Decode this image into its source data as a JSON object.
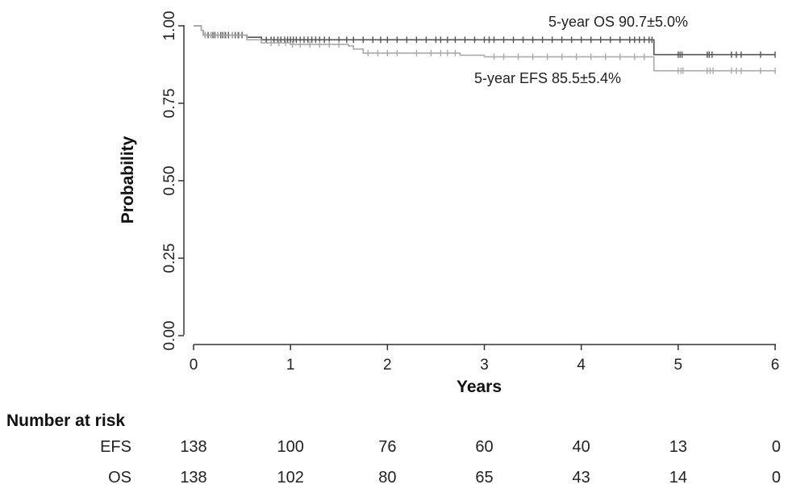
{
  "chart_data": {
    "type": "line",
    "xlabel": "Years",
    "ylabel": "Probability",
    "xlim": [
      0,
      6
    ],
    "ylim": [
      0,
      1
    ],
    "x_ticks": [
      "0",
      "1",
      "2",
      "3",
      "4",
      "5",
      "6"
    ],
    "y_ticks": [
      "0.00",
      "0.25",
      "0.50",
      "0.75",
      "1.00"
    ],
    "grid": false,
    "series": [
      {
        "name": "OS",
        "color": "#555555",
        "points": [
          [
            0,
            1.0
          ],
          [
            0.08,
            0.985
          ],
          [
            0.1,
            0.97
          ],
          [
            0.55,
            0.963
          ],
          [
            0.7,
            0.955
          ],
          [
            4.75,
            0.955
          ],
          [
            4.75,
            0.907
          ],
          [
            6.0,
            0.907
          ]
        ],
        "censor_x": [
          0.12,
          0.15,
          0.18,
          0.2,
          0.22,
          0.25,
          0.28,
          0.3,
          0.33,
          0.36,
          0.4,
          0.43,
          0.46,
          0.5,
          0.7,
          0.75,
          0.8,
          0.83,
          0.87,
          0.9,
          0.94,
          0.97,
          1.0,
          1.03,
          1.06,
          1.1,
          1.14,
          1.18,
          1.22,
          1.26,
          1.3,
          1.35,
          1.4,
          1.5,
          1.58,
          1.65,
          1.75,
          1.85,
          1.93,
          2.0,
          2.1,
          2.2,
          2.3,
          2.4,
          2.5,
          2.55,
          2.62,
          2.7,
          2.8,
          2.9,
          3.0,
          3.05,
          3.1,
          3.2,
          3.3,
          3.4,
          3.5,
          3.6,
          3.7,
          3.8,
          3.9,
          4.0,
          4.1,
          4.2,
          4.3,
          4.4,
          4.5,
          4.55,
          4.6,
          4.65,
          4.7,
          4.73,
          5.0,
          5.02,
          5.04,
          5.3,
          5.32,
          5.35,
          5.55,
          5.6,
          5.65,
          5.85,
          6.0
        ]
      },
      {
        "name": "EFS",
        "color": "#aaaaaa",
        "points": [
          [
            0,
            1.0
          ],
          [
            0.08,
            0.985
          ],
          [
            0.1,
            0.97
          ],
          [
            0.55,
            0.955
          ],
          [
            0.7,
            0.945
          ],
          [
            1.0,
            0.94
          ],
          [
            1.6,
            0.935
          ],
          [
            1.65,
            0.925
          ],
          [
            1.75,
            0.912
          ],
          [
            2.75,
            0.912
          ],
          [
            2.75,
            0.905
          ],
          [
            3.0,
            0.905
          ],
          [
            3.0,
            0.9
          ],
          [
            4.75,
            0.9
          ],
          [
            4.75,
            0.855
          ],
          [
            6.0,
            0.855
          ]
        ],
        "censor_x": [
          0.12,
          0.18,
          0.25,
          0.32,
          0.4,
          0.47,
          0.8,
          0.88,
          0.95,
          1.02,
          1.1,
          1.2,
          1.3,
          1.4,
          1.5,
          1.8,
          1.9,
          2.0,
          2.1,
          2.3,
          2.45,
          2.55,
          2.62,
          2.7,
          3.1,
          3.2,
          3.35,
          3.5,
          3.65,
          3.8,
          3.95,
          4.1,
          4.25,
          4.4,
          4.55,
          4.65,
          5.0,
          5.03,
          5.05,
          5.3,
          5.33,
          5.36,
          5.55,
          5.6,
          5.65,
          5.85,
          6.0
        ]
      }
    ],
    "annotations": {
      "os_label": "5-year OS 90.7±5.0%",
      "efs_label": "5-year EFS 85.5±5.4%"
    },
    "risk_table": {
      "title": "Number at risk",
      "time_points": [
        0,
        1,
        2,
        3,
        4,
        5,
        6
      ],
      "rows": [
        {
          "label": "EFS",
          "values": [
            "138",
            "100",
            "76",
            "60",
            "40",
            "13",
            "0"
          ]
        },
        {
          "label": "OS",
          "values": [
            "138",
            "102",
            "80",
            "65",
            "43",
            "14",
            "0"
          ]
        }
      ]
    }
  }
}
